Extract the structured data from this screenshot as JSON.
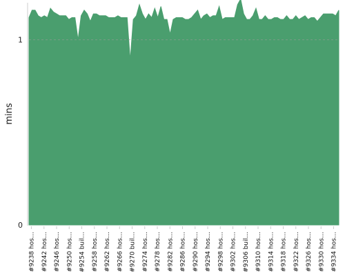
{
  "chart_data": {
    "type": "area",
    "ylabel": "mins",
    "ylim": [
      0,
      1.2
    ],
    "yticks": [
      0,
      1
    ],
    "grid": "horizontal",
    "colors": {
      "fill": "#4a9e6e",
      "axis": "#cccccc",
      "grid": "#999999"
    },
    "tick_labels": [
      "#9238 hos…",
      "#9242 hos…",
      "#9246 hos…",
      "#9250 hos…",
      "#9254 buil…",
      "#9258 hos…",
      "#9262 hos…",
      "#9266 hos…",
      "#9270 buil…",
      "#9274 hos…",
      "#9278 hos…",
      "#9282 hos…",
      "#9286 hos…",
      "#9290 hos…",
      "#9294 hos…",
      "#9298 hos…",
      "#9302 hos…",
      "#9306 buil…",
      "#9310 hos…",
      "#9314 hos…",
      "#9318 hos…",
      "#9322 hos…",
      "#9326 hos…",
      "#9330 hos…",
      "#9334 hos…"
    ],
    "values": [
      1.12,
      1.16,
      1.16,
      1.13,
      1.12,
      1.13,
      1.12,
      1.17,
      1.15,
      1.14,
      1.13,
      1.13,
      1.13,
      1.11,
      1.12,
      1.12,
      1.0,
      1.13,
      1.16,
      1.14,
      1.1,
      1.14,
      1.14,
      1.13,
      1.13,
      1.13,
      1.12,
      1.12,
      1.12,
      1.13,
      1.12,
      1.12,
      1.12,
      0.89,
      1.11,
      1.13,
      1.19,
      1.14,
      1.11,
      1.14,
      1.12,
      1.17,
      1.12,
      1.18,
      1.11,
      1.11,
      1.03,
      1.11,
      1.12,
      1.12,
      1.12,
      1.11,
      1.11,
      1.12,
      1.14,
      1.16,
      1.11,
      1.13,
      1.14,
      1.12,
      1.13,
      1.13,
      1.18,
      1.11,
      1.12,
      1.12,
      1.12,
      1.12,
      1.19,
      1.22,
      1.14,
      1.11,
      1.11,
      1.13,
      1.17,
      1.11,
      1.11,
      1.13,
      1.11,
      1.11,
      1.12,
      1.12,
      1.11,
      1.11,
      1.13,
      1.11,
      1.11,
      1.13,
      1.11,
      1.12,
      1.13,
      1.11,
      1.12,
      1.12,
      1.1,
      1.12,
      1.14,
      1.14,
      1.14,
      1.14,
      1.13,
      1.16
    ]
  }
}
